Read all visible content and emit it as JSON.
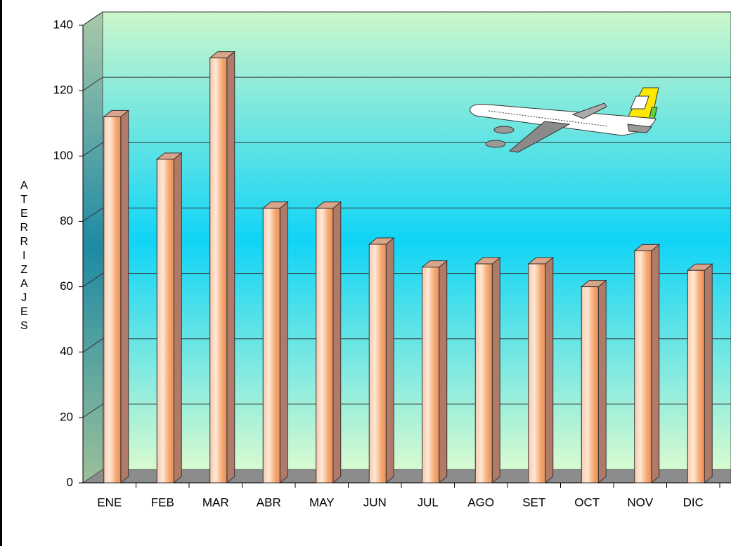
{
  "chart_data": {
    "type": "bar",
    "y_label": "ATERRIZAJES",
    "categories": [
      "ENE",
      "FEB",
      "MAR",
      "ABR",
      "MAY",
      "JUN",
      "JUL",
      "AGO",
      "SET",
      "OCT",
      "NOV",
      "DIC"
    ],
    "values": [
      112,
      99,
      130,
      84,
      84,
      73,
      66,
      67,
      67,
      60,
      71,
      65
    ],
    "color": "#f4a46c",
    "ylim": [
      0,
      140
    ],
    "yticks": [
      0,
      20,
      40,
      60,
      80,
      100,
      120,
      140
    ],
    "grid": true
  }
}
